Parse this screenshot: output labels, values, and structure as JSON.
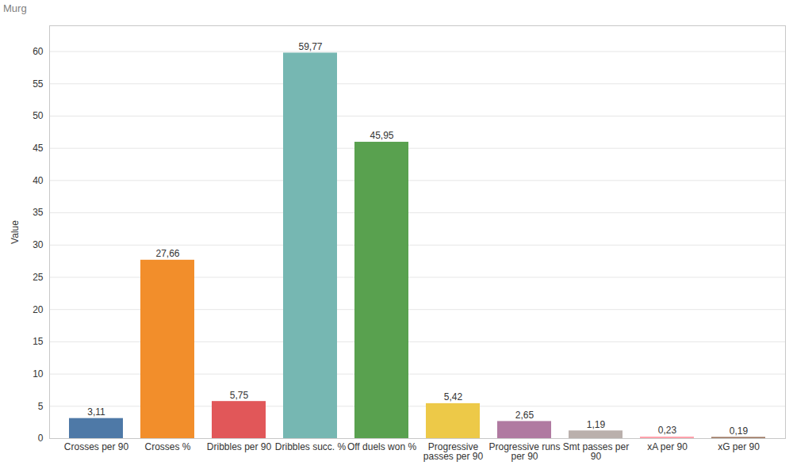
{
  "chart_data": {
    "type": "bar",
    "title": "Murg",
    "y_label": "Value",
    "categories": [
      "Crosses per 90",
      "Crosses %",
      "Dribbles per 90",
      "Dribbles succ. %",
      "Off duels won %",
      "Progressive passes per 90",
      "Progressive runs per 90",
      "Smt passes per 90",
      "xA per 90",
      "xG per 90"
    ],
    "values": [
      3.11,
      27.66,
      5.75,
      59.77,
      45.95,
      5.42,
      2.65,
      1.19,
      0.23,
      0.19
    ],
    "value_labels": [
      "3,11",
      "27,66",
      "5,75",
      "59,77",
      "45,95",
      "5,42",
      "2,65",
      "1,19",
      "0,23",
      "0,19"
    ],
    "colors": [
      "#4e79a7",
      "#f28e2b",
      "#e15759",
      "#76b7b2",
      "#59a14f",
      "#edc948",
      "#b07aa1",
      "#bab0ac",
      "#ff9da7",
      "#9c755f"
    ],
    "ylim": [
      0,
      64
    ],
    "yticks": [
      0,
      5,
      10,
      15,
      20,
      25,
      30,
      35,
      40,
      45,
      50,
      55,
      60
    ],
    "grid": true,
    "data_labels": true
  }
}
